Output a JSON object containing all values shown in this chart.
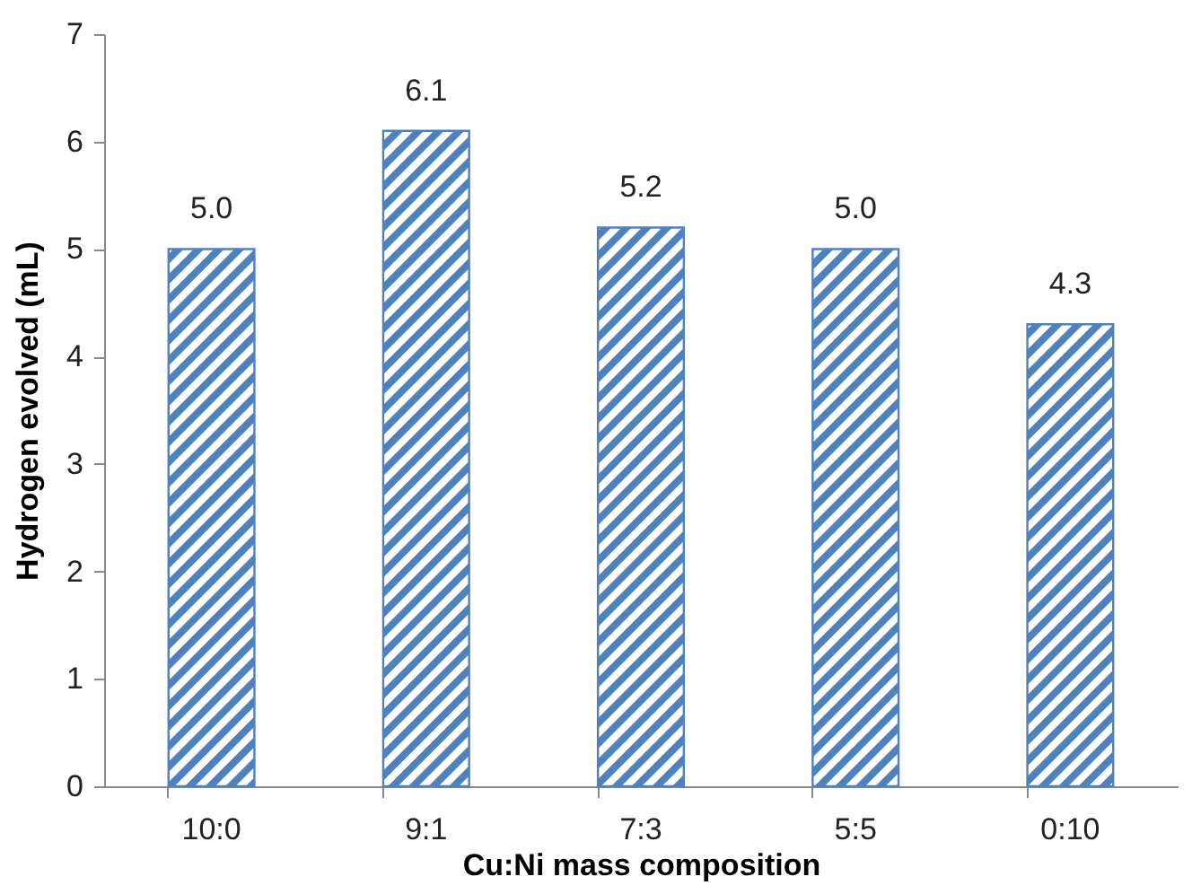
{
  "chart_data": {
    "type": "bar",
    "xlabel": "Cu:Ni mass composition",
    "ylabel": "Hydrogen evolved (mL)",
    "categories": [
      "10:0",
      "9:1",
      "7:3",
      "5:5",
      "0:10"
    ],
    "values": [
      5.0,
      6.1,
      5.2,
      5.0,
      4.3
    ],
    "value_labels": [
      "5.0",
      "6.1",
      "5.2",
      "5.0",
      "4.3"
    ],
    "color": "#4f81bd",
    "ylim": [
      0,
      7
    ],
    "yticks": [
      0,
      1,
      2,
      3,
      4,
      5,
      6,
      7
    ],
    "grid": false
  }
}
